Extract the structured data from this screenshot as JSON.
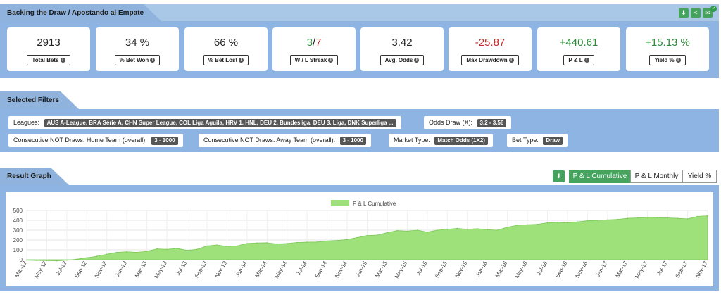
{
  "header": {
    "title": "Backing the Draw / Apostando al Empate",
    "actions": [
      {
        "name": "download-icon",
        "glyph": "⬇"
      },
      {
        "name": "share-icon",
        "glyph": "<"
      },
      {
        "name": "email-icon",
        "glyph": "✉"
      }
    ]
  },
  "stats": [
    {
      "value": "2913",
      "label": "Total Bets",
      "tone": "neutral"
    },
    {
      "value": "34 %",
      "label": "% Bet Won",
      "tone": "neutral"
    },
    {
      "value": "66 %",
      "label": "% Bet Lost",
      "tone": "neutral"
    },
    {
      "value": "3/7",
      "label": "W / L Streak",
      "tone": "streak"
    },
    {
      "value": "3.42",
      "label": "Avg. Odds",
      "tone": "neutral"
    },
    {
      "value": "-25.87",
      "label": "Max Drawdown",
      "tone": "red"
    },
    {
      "value": "+440.61",
      "label": "P & L",
      "tone": "green"
    },
    {
      "value": "+15.13 %",
      "label": "Yield %",
      "tone": "green"
    }
  ],
  "filters": {
    "title": "Selected Filters",
    "leagues_label": "Leagues:",
    "leagues_value": "AUS A-League, BRA Série A, CHN Super League, COL Liga Aguila, HRV 1. HNL, DEU 2. Bundesliga, DEU 3. Liga, DNK Superliga ...",
    "odds_label": "Odds Draw (X):",
    "odds_value": "3.2 - 3.56",
    "home_label": "Consecutive NOT Draws. Home Team (overall):",
    "home_value": "3 - 1000",
    "away_label": "Consecutive NOT Draws. Away Team (overall):",
    "away_value": "3 - 1000",
    "market_label": "Market Type:",
    "market_value": "Match Odds (1X2)",
    "bettype_label": "Bet Type:",
    "bettype_value": "Draw"
  },
  "graph": {
    "title": "Result Graph",
    "buttons": [
      "P & L Cumulative",
      "P & L Monthly",
      "Yield %"
    ],
    "active": "P & L Cumulative"
  },
  "chart_data": {
    "type": "area",
    "legend": "P & L Cumulative",
    "series_color": "#9ee07a",
    "ylim": [
      0,
      500
    ],
    "yticks": [
      0,
      100,
      200,
      300,
      400,
      500
    ],
    "x": [
      "Mar-12",
      "Apr-12",
      "May-12",
      "Jun-12",
      "Jul-12",
      "Aug-12",
      "Sep-12",
      "Oct-12",
      "Nov-12",
      "Dec-12",
      "Jan-13",
      "Feb-13",
      "Mar-13",
      "Apr-13",
      "May-13",
      "Jun-13",
      "Jul-13",
      "Aug-13",
      "Sep-13",
      "Oct-13",
      "Nov-13",
      "Dec-13",
      "Jan-14",
      "Feb-14",
      "Mar-14",
      "Apr-14",
      "May-14",
      "Jun-14",
      "Jul-14",
      "Aug-14",
      "Sep-14",
      "Oct-14",
      "Nov-14",
      "Dec-14",
      "Jan-15",
      "Feb-15",
      "Mar-15",
      "Apr-15",
      "May-15",
      "Jun-15",
      "Jul-15",
      "Aug-15",
      "Sep-15",
      "Oct-15",
      "Nov-15",
      "Dec-15",
      "Jan-16",
      "Feb-16",
      "Mar-16",
      "Apr-16",
      "May-16",
      "Jun-16",
      "Jul-16",
      "Aug-16",
      "Sep-16",
      "Oct-16",
      "Nov-16",
      "Dec-16",
      "Jan-17",
      "Feb-17",
      "Mar-17",
      "Apr-17",
      "May-17",
      "Jun-17",
      "Jul-17",
      "Aug-17",
      "Sep-17",
      "Oct-17",
      "Nov-17"
    ],
    "y": [
      -5,
      -8,
      -10,
      -12,
      -5,
      5,
      20,
      35,
      55,
      75,
      80,
      75,
      85,
      110,
      105,
      115,
      95,
      105,
      140,
      150,
      135,
      140,
      165,
      170,
      172,
      160,
      165,
      175,
      178,
      180,
      190,
      195,
      205,
      225,
      245,
      250,
      275,
      295,
      290,
      300,
      280,
      300,
      310,
      318,
      310,
      315,
      305,
      300,
      330,
      350,
      355,
      360,
      375,
      380,
      375,
      385,
      395,
      400,
      405,
      410,
      420,
      425,
      430,
      428,
      425,
      420,
      415,
      440,
      445
    ],
    "xtick_labels": [
      "Mar-12",
      "May-12",
      "Jul-12",
      "Sep-12",
      "Nov-12",
      "Jan-13",
      "Mar-13",
      "May-13",
      "Jul-13",
      "Sep-13",
      "Nov-13",
      "Jan-14",
      "Mar-14",
      "May-14",
      "Jul-14",
      "Sep-14",
      "Nov-14",
      "Jan-15",
      "Mar-15",
      "May-15",
      "Jul-15",
      "Sep-15",
      "Nov-15",
      "Jan-16",
      "Mar-16",
      "May-16",
      "Jul-16",
      "Sep-16",
      "Nov-16",
      "Jan-17",
      "Mar-17",
      "May-17",
      "Jul-17",
      "Sep-17",
      "Nov-17"
    ]
  }
}
